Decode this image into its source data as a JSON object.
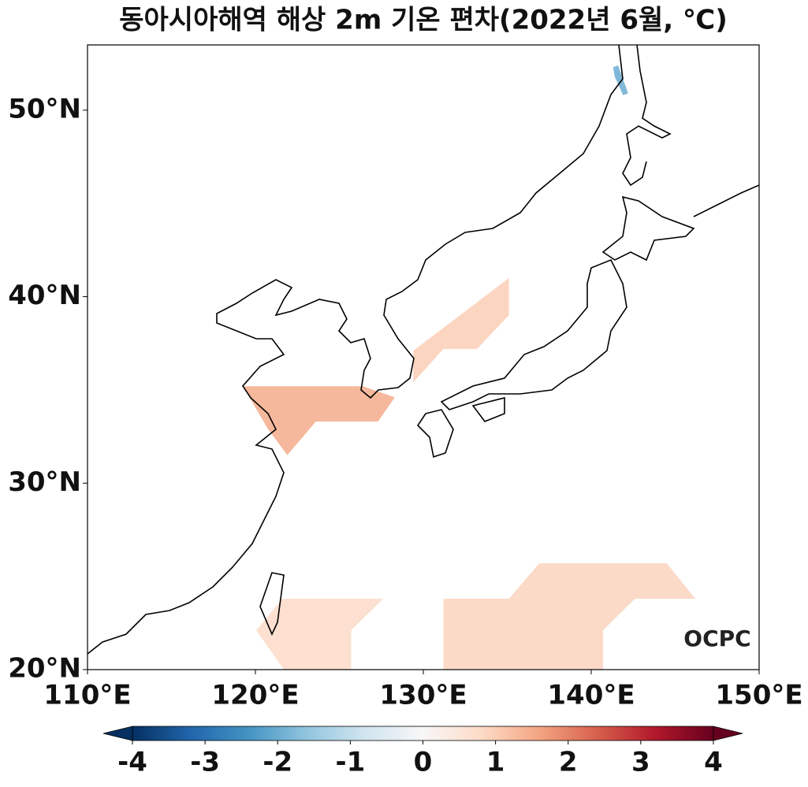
{
  "chart_data": {
    "type": "map",
    "title": "동아시아해역 해상 2m 기온 편차(2022년 6월, ℃)",
    "xlim": [
      110,
      150
    ],
    "ylim": [
      20,
      53.5
    ],
    "xticks": [
      {
        "value": 110,
        "label": "110°E"
      },
      {
        "value": 120,
        "label": "120°E"
      },
      {
        "value": 130,
        "label": "130°E"
      },
      {
        "value": 140,
        "label": "140°E"
      },
      {
        "value": 150,
        "label": "150°E"
      }
    ],
    "yticks": [
      {
        "value": 20,
        "label": "20°N"
      },
      {
        "value": 30,
        "label": "30°N"
      },
      {
        "value": 40,
        "label": "40°N"
      },
      {
        "value": 50,
        "label": "50°N"
      }
    ],
    "colormap": [
      "#053061",
      "#2166ac",
      "#4393c3",
      "#92c5de",
      "#d1e5f0",
      "#f7f7f7",
      "#fddbc7",
      "#f4a582",
      "#d6604d",
      "#b2182b",
      "#67001f"
    ],
    "colorbar": {
      "lim": [
        -4,
        4
      ],
      "ticks": [
        -4,
        -3,
        -2,
        -1,
        0,
        1,
        2,
        3,
        4
      ],
      "extend": "both"
    },
    "regions": [
      {
        "lon": [
          119.25,
          126.4,
          128.3,
          127.3,
          123.6,
          121.9,
          120.75
        ],
        "lat": [
          35.2,
          35.2,
          34.6,
          33.3,
          33.3,
          31.5,
          32.9
        ],
        "value": 1.5
      },
      {
        "lon": [
          129.4,
          135.1,
          135.1,
          133.2,
          131.2,
          129.4
        ],
        "lat": [
          37.1,
          41.0,
          39.0,
          37.2,
          37.2,
          35.4
        ],
        "value": 1.0
      },
      {
        "lon": [
          121.6,
          127.6,
          125.7,
          125.7,
          121.7,
          120.05
        ],
        "lat": [
          23.8,
          23.8,
          22.1,
          20,
          20,
          22.1
        ],
        "value": 0.8
      },
      {
        "lon": [
          131.2,
          135.1,
          136.9,
          144.5,
          146.2,
          142.6,
          140.7,
          140.7,
          131.2
        ],
        "lat": [
          23.8,
          23.8,
          25.7,
          25.7,
          23.8,
          23.8,
          22.1,
          20,
          20
        ],
        "value": 0.9
      },
      {
        "lon": [
          141.3,
          141.6,
          142.2,
          141.9,
          141.4
        ],
        "lat": [
          52.3,
          52.4,
          50.9,
          50.8,
          51.8
        ],
        "value": -2.0
      }
    ],
    "logo": "OCPC"
  }
}
